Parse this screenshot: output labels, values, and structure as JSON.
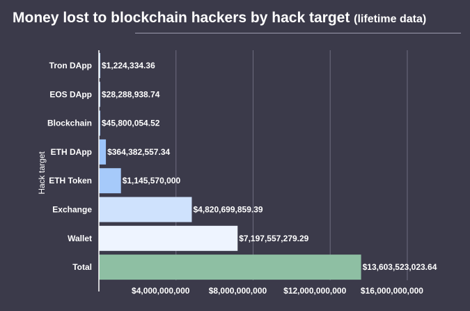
{
  "chart_data": {
    "type": "bar",
    "orientation": "horizontal",
    "title": "Money lost to blockchain hackers by hack target",
    "subtitle": "(lifetime data)",
    "ylabel": "Hack target",
    "xlabel": "",
    "categories": [
      "Tron DApp",
      "EOS DApp",
      "Blockchain",
      "ETH DApp",
      "ETH Token",
      "Exchange",
      "Wallet",
      "Total"
    ],
    "values": [
      1224334.36,
      28288938.74,
      45800054.52,
      364382557.34,
      1145570000,
      4820699859.39,
      7197557279.29,
      13603523023.64
    ],
    "value_labels": [
      "$1,224,334.36",
      "$28,288,938.74",
      "$45,800,054.52",
      "$364,382,557.34",
      "$1,145,570,000",
      "$4,820,699,859.39",
      "$7,197,557,279.29",
      "$13,603,523,023.64"
    ],
    "bar_colors": [
      "#bdd7fb",
      "#bdd7fb",
      "#a9cbfa",
      "#9cc4fa",
      "#a6cafa",
      "#cfe2fd",
      "#eef4ff",
      "#8ebfa3"
    ],
    "xticks": [
      4000000000,
      8000000000,
      12000000000,
      16000000000
    ],
    "xtick_labels": [
      "$4,000,000,000",
      "$8,000,000,000",
      "$12,000,000,000",
      "$16,000,000,000"
    ],
    "xlim": [
      0,
      19000000000
    ],
    "grid": true,
    "legend": "none"
  }
}
